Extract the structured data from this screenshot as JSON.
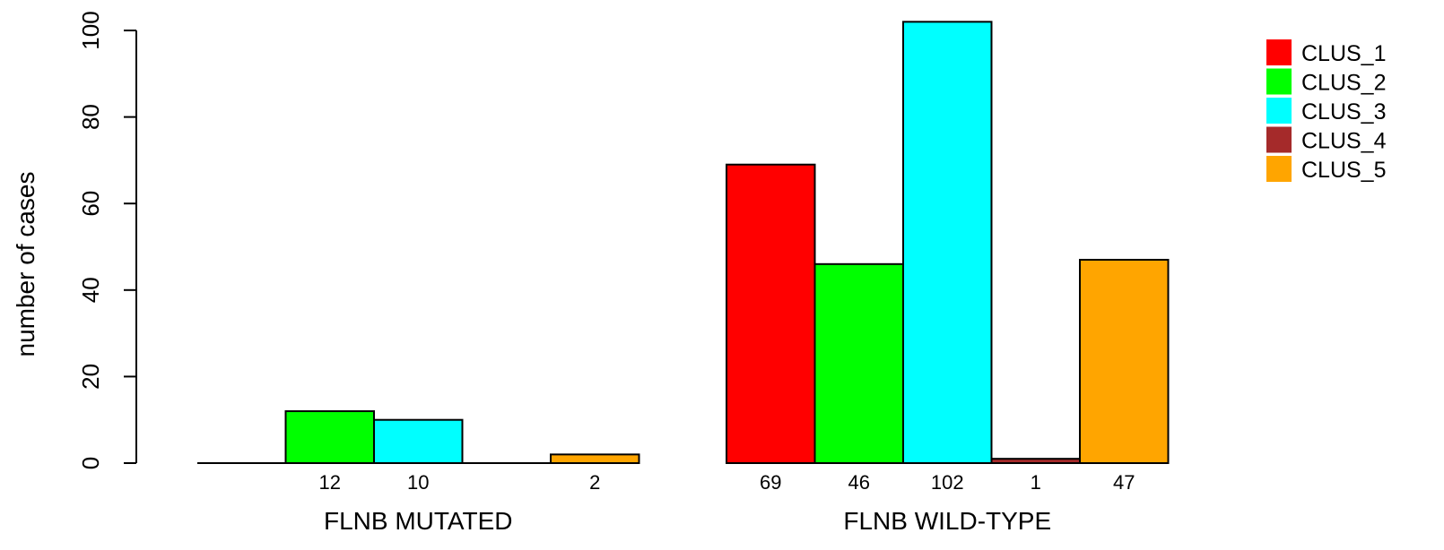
{
  "chart_data": {
    "type": "bar",
    "title": "",
    "xlabel": "",
    "ylabel": "number of cases",
    "ylim": [
      0,
      100
    ],
    "y_ticks": [
      0,
      20,
      40,
      60,
      80,
      100
    ],
    "grid": false,
    "legend_position": "top-right",
    "groups": [
      "FLNB MUTATED",
      "FLNB WILD-TYPE"
    ],
    "series": [
      {
        "name": "CLUS_1",
        "color": "#ff0000",
        "values": [
          0,
          69
        ]
      },
      {
        "name": "CLUS_2",
        "color": "#00ff00",
        "values": [
          12,
          46
        ]
      },
      {
        "name": "CLUS_3",
        "color": "#00ffff",
        "values": [
          10,
          102
        ]
      },
      {
        "name": "CLUS_4",
        "color": "#a52a2a",
        "values": [
          0,
          1
        ]
      },
      {
        "name": "CLUS_5",
        "color": "#ffa500",
        "values": [
          2,
          47
        ]
      }
    ],
    "count_labels": [
      [
        "",
        "12",
        "10",
        "",
        "2"
      ],
      [
        "69",
        "46",
        "102",
        "1",
        "47"
      ]
    ]
  }
}
